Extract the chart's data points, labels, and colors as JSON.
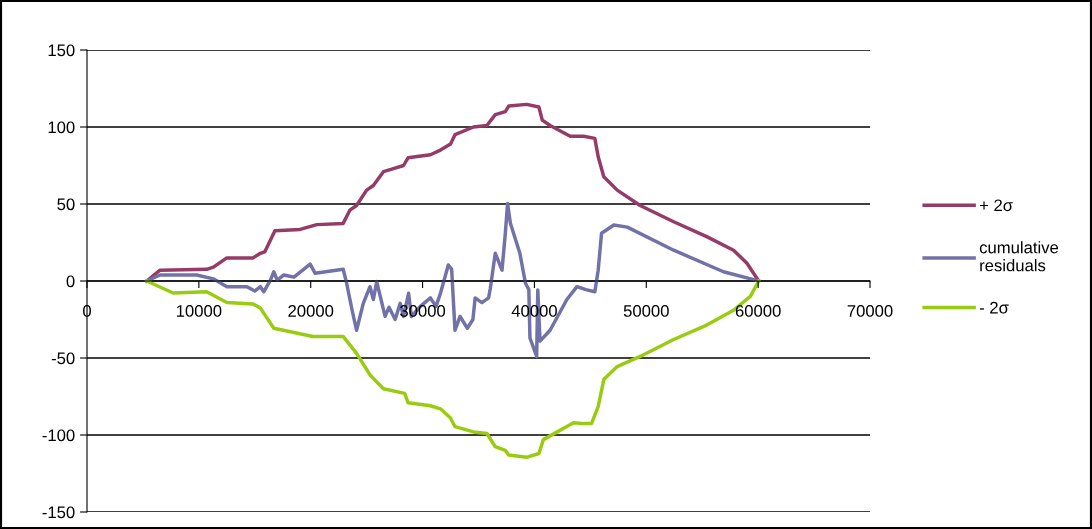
{
  "chart_data": {
    "type": "line",
    "xlim": [
      0,
      70000
    ],
    "xticks": [
      0,
      10000,
      20000,
      30000,
      40000,
      50000,
      60000,
      70000
    ],
    "ylim": [
      -150,
      150
    ],
    "yticks": [
      -150,
      -100,
      -50,
      0,
      50,
      100,
      150
    ],
    "grid": "y",
    "legend": "right",
    "line_style": "solid",
    "marker": "none",
    "series": [
      {
        "name": "+ 2σ",
        "color": "#953b67",
        "x": [
          5340,
          6530,
          10700,
          11300,
          12500,
          14850,
          15500,
          15900,
          16800,
          19050,
          20550,
          22900,
          23500,
          24100,
          25000,
          25600,
          26500,
          27400,
          28300,
          28700,
          30700,
          31600,
          32500,
          32900,
          34550,
          35750,
          36500,
          37400,
          37700,
          39300,
          40400,
          40700,
          41400,
          43200,
          44400,
          45400,
          45700,
          46200,
          47400,
          49450,
          52450,
          55400,
          57800,
          59000,
          60050
        ],
        "values": [
          0,
          7,
          7.6,
          9,
          15,
          15,
          18,
          19,
          32.7,
          33.5,
          36.6,
          37.4,
          46,
          49,
          59,
          62,
          71,
          73,
          75,
          80,
          82,
          85,
          89,
          95,
          100,
          101,
          108,
          110,
          113.6,
          114.7,
          113,
          104.5,
          101,
          94,
          94,
          92.6,
          80.7,
          67.7,
          59,
          49,
          38.5,
          28.8,
          20,
          11.5,
          0
        ]
      },
      {
        "name": "cumulative residuals",
        "color": "#7272a8",
        "x": [
          5340,
          6530,
          9800,
          11300,
          12500,
          14300,
          15000,
          15500,
          15800,
          16400,
          16700,
          17000,
          17600,
          18500,
          19950,
          20400,
          22900,
          23200,
          23700,
          24100,
          24700,
          25300,
          25600,
          25900,
          26650,
          27000,
          27550,
          28000,
          28300,
          28750,
          29000,
          29800,
          30700,
          31200,
          31600,
          32300,
          32600,
          32900,
          33350,
          34000,
          34500,
          34700,
          35300,
          35900,
          36050,
          36500,
          37100,
          37400,
          37600,
          37850,
          38700,
          39200,
          39500,
          39600,
          40200,
          40300,
          40500,
          41400,
          42900,
          43800,
          44600,
          45400,
          45700,
          46000,
          47100,
          48300,
          52450,
          56900,
          60050
        ],
        "values": [
          0,
          3.9,
          3.9,
          1.4,
          -3.7,
          -3.7,
          -6.5,
          -3.7,
          -7,
          0.6,
          6,
          0.6,
          3.9,
          2.5,
          11,
          5,
          7.6,
          -1,
          -19,
          -32,
          -14.5,
          -3.7,
          -12,
          -0.4,
          -23,
          -17,
          -25,
          -14.5,
          -23,
          -8,
          -23,
          -16.5,
          -11,
          -16.5,
          -8,
          10.4,
          7.6,
          -32,
          -23,
          -30.7,
          -25,
          -11,
          -14,
          -11,
          -5,
          18,
          7,
          31,
          50.4,
          37.5,
          18,
          -1.5,
          -5.6,
          -37,
          -49,
          -5.8,
          -39,
          -32,
          -12,
          -3.7,
          -5.6,
          -7,
          7,
          31,
          36.4,
          35,
          20,
          6,
          0
        ]
      },
      {
        "name": "- 2σ",
        "color": "#99cc11",
        "x": [
          5340,
          7700,
          10700,
          12500,
          14850,
          15500,
          16700,
          20200,
          22900,
          24100,
          25300,
          26500,
          28400,
          28700,
          30700,
          31600,
          32500,
          32900,
          34550,
          35750,
          36500,
          37400,
          37700,
          39300,
          40400,
          40800,
          43500,
          44400,
          45100,
          45700,
          46200,
          47400,
          49450,
          52450,
          55400,
          57800,
          59300,
          60050
        ],
        "values": [
          0,
          -7.8,
          -7,
          -14,
          -15,
          -17.6,
          -30.7,
          -36,
          -36,
          -47,
          -61,
          -70,
          -73,
          -79,
          -81,
          -83,
          -89,
          -94.6,
          -98,
          -99,
          -107.6,
          -110,
          -113,
          -114.5,
          -112,
          -103,
          -92,
          -92.6,
          -92.6,
          -81.6,
          -64,
          -55.6,
          -49,
          -38,
          -28.6,
          -19,
          -10,
          0
        ]
      }
    ]
  }
}
